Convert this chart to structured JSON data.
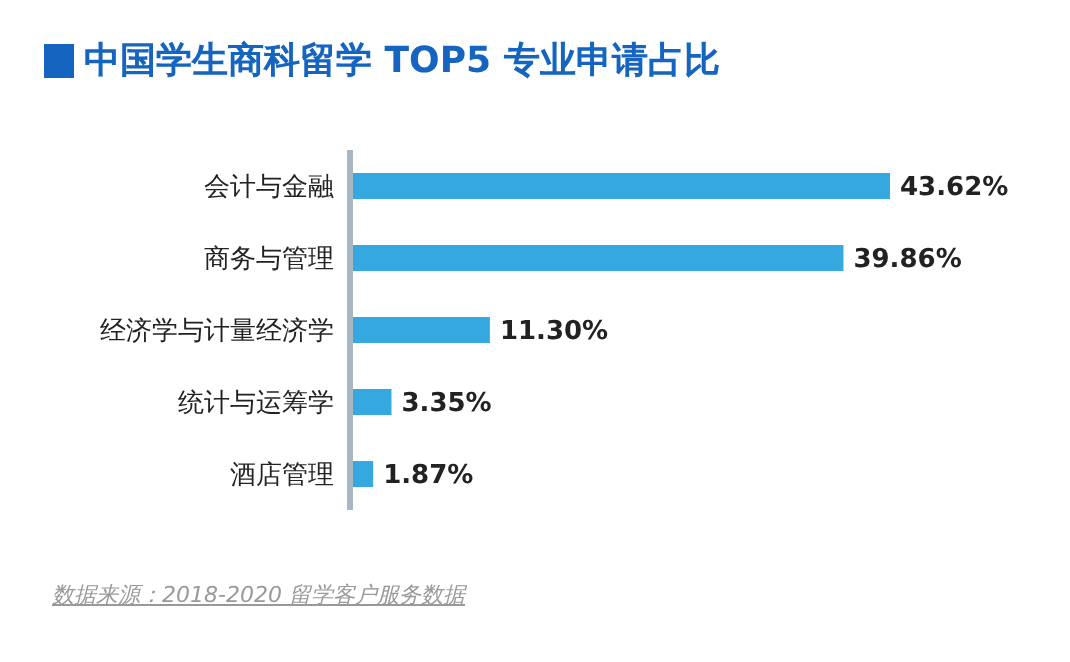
{
  "chart_data": {
    "type": "bar",
    "orientation": "horizontal",
    "title": "中国学生商科留学 TOP5 专业申请占比",
    "categories": [
      "会计与金融",
      "商务与管理",
      "经济学与计量经济学",
      "统计与运筹学",
      "酒店管理"
    ],
    "values": [
      43.62,
      39.86,
      11.3,
      3.35,
      1.87
    ],
    "value_labels": [
      "43.62%",
      "39.86%",
      "11.30%",
      "3.35%",
      "1.87%"
    ],
    "color": "#35a8e0",
    "annotations": [
      "数据来源：2018-2020 留学客户服务数据"
    ],
    "grid": false,
    "legend": false
  }
}
